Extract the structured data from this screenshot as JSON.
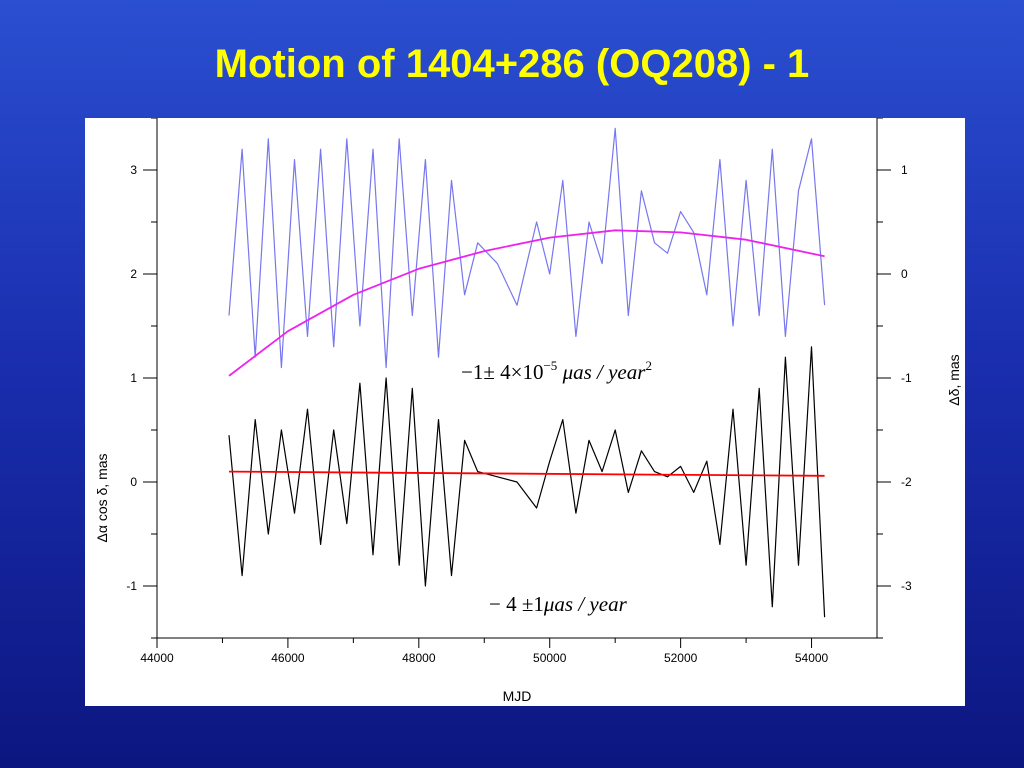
{
  "title": "Motion of 1404+286 (OQ208) - 1",
  "chart_data": {
    "type": "line",
    "xlabel": "MJD",
    "ylabel_left": "Δα cos δ, mas",
    "ylabel_right": "Δδ, mas",
    "xlim": [
      44000,
      55000
    ],
    "ylim_left": [
      -1.5,
      3.5
    ],
    "ylim_right": [
      -3.5,
      1.5
    ],
    "x_ticks": [
      44000,
      46000,
      48000,
      50000,
      52000,
      54000
    ],
    "y_ticks_left": [
      -1,
      0,
      1,
      2,
      3
    ],
    "y_ticks_right": [
      -3,
      -2,
      -1,
      0,
      1
    ],
    "grid": false,
    "colors": {
      "ra_series": "#000000",
      "ra_fit": "#ff0000",
      "dec_series": "#7777ee",
      "dec_fit": "#ee22ee"
    },
    "series": [
      {
        "axis": "left",
        "x": [
          45100,
          45300,
          45500,
          45700,
          45900,
          46100,
          46300,
          46500,
          46700,
          46900,
          47100,
          47300,
          47500,
          47700,
          47900,
          48100,
          48300,
          48500,
          48700,
          48900,
          49200,
          49500,
          49800,
          50000,
          50200,
          50400,
          50600,
          50800,
          51000,
          51200,
          51400,
          51600,
          51800,
          52000,
          52200,
          52400,
          52600,
          52800,
          53000,
          53200,
          53400,
          53600,
          53800,
          54000,
          54200
        ],
        "values": [
          0.45,
          -0.9,
          0.6,
          -0.5,
          0.5,
          -0.3,
          0.7,
          -0.6,
          0.5,
          -0.4,
          0.95,
          -0.7,
          1.0,
          -0.8,
          0.9,
          -1.0,
          0.6,
          -0.9,
          0.4,
          0.1,
          0.05,
          0.0,
          -0.25,
          0.2,
          0.6,
          -0.3,
          0.4,
          0.1,
          0.5,
          -0.1,
          0.3,
          0.1,
          0.05,
          0.15,
          -0.1,
          0.2,
          -0.6,
          0.7,
          -0.8,
          0.9,
          -1.2,
          1.2,
          -0.8,
          1.3,
          -1.3
        ]
      },
      {
        "axis": "left",
        "x": [
          45100,
          54200
        ],
        "values": [
          0.1,
          0.06
        ]
      },
      {
        "axis": "right",
        "x": [
          45100,
          45300,
          45500,
          45700,
          45900,
          46100,
          46300,
          46500,
          46700,
          46900,
          47100,
          47300,
          47500,
          47700,
          47900,
          48100,
          48300,
          48500,
          48700,
          48900,
          49200,
          49500,
          49800,
          50000,
          50200,
          50400,
          50600,
          50800,
          51000,
          51200,
          51400,
          51600,
          51800,
          52000,
          52200,
          52400,
          52600,
          52800,
          53000,
          53200,
          53400,
          53600,
          53800,
          54000,
          54200
        ],
        "values": [
          -0.4,
          1.2,
          -0.8,
          1.3,
          -0.9,
          1.1,
          -0.6,
          1.2,
          -0.7,
          1.3,
          -0.5,
          1.2,
          -0.9,
          1.3,
          -0.4,
          1.1,
          -0.8,
          0.9,
          -0.2,
          0.3,
          0.1,
          -0.3,
          0.5,
          0.0,
          0.9,
          -0.6,
          0.5,
          0.1,
          1.4,
          -0.4,
          0.8,
          0.3,
          0.2,
          0.6,
          0.4,
          -0.2,
          1.1,
          -0.5,
          0.9,
          -0.4,
          1.2,
          -0.6,
          0.8,
          1.3,
          -0.3
        ]
      },
      {
        "axis": "right",
        "x": [
          45100,
          46000,
          47000,
          48000,
          49000,
          50000,
          51000,
          52000,
          53000,
          54200
        ],
        "values": [
          -0.98,
          -0.55,
          -0.2,
          0.05,
          0.22,
          0.35,
          0.42,
          0.4,
          0.33,
          0.17
        ]
      }
    ]
  },
  "annotations": {
    "accel": {
      "coef": "−1± 4×10",
      "exp": "−5",
      "unit": " μas / year",
      "exp2": "2"
    },
    "rate": {
      "coef": "− 4 ±1",
      "unit": "μas / year"
    }
  }
}
